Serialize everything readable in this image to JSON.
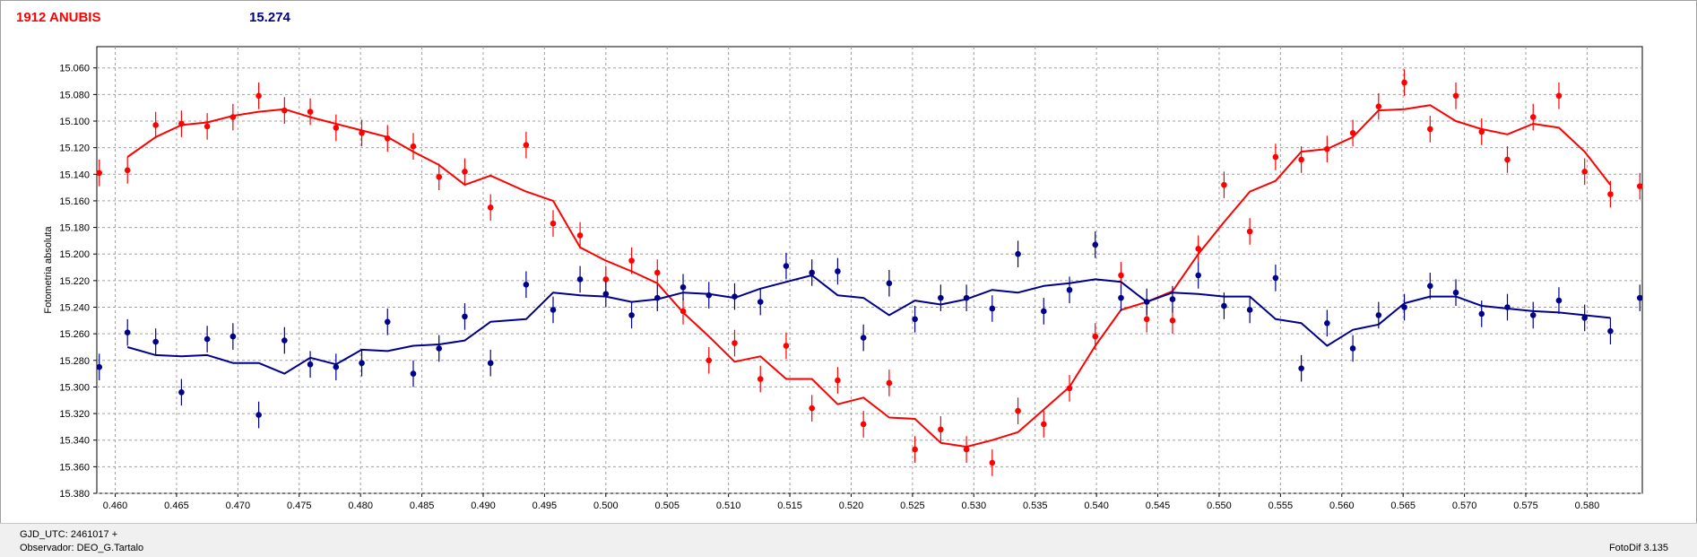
{
  "header": {
    "object_name": "1912 ANUBIS",
    "mean_magnitude": "15.274"
  },
  "footer": {
    "gjd_label": "GJD_UTC: 2461017 +",
    "observer_label": "Observador: DEO_G.Tartalo",
    "software_version": "FotoDif 3.135"
  },
  "colors": {
    "target": "#ff0000",
    "comparison": "#00008b",
    "grid": "#a0a0a0"
  },
  "chart_data": {
    "type": "scatter",
    "title": "",
    "xlabel": "",
    "ylabel": "Fotometria absoluta",
    "xlim": [
      0.4585,
      0.5845
    ],
    "ylim": [
      15.38,
      15.044
    ],
    "y_inverted": true,
    "grid": true,
    "x_ticks": [
      "0.460",
      "0.465",
      "0.470",
      "0.475",
      "0.480",
      "0.485",
      "0.490",
      "0.495",
      "0.500",
      "0.505",
      "0.510",
      "0.515",
      "0.520",
      "0.525",
      "0.530",
      "0.535",
      "0.540",
      "0.545",
      "0.550",
      "0.555",
      "0.560",
      "0.565",
      "0.570",
      "0.575",
      "0.580"
    ],
    "y_ticks": [
      "15.060",
      "15.080",
      "15.100",
      "15.120",
      "15.140",
      "15.160",
      "15.180",
      "15.200",
      "15.220",
      "15.240",
      "15.260",
      "15.280",
      "15.300",
      "15.320",
      "15.340",
      "15.360",
      "15.380"
    ],
    "series": [
      {
        "name": "",
        "color": "#ff0000",
        "error": 0.01,
        "points": [
          [
            0.4587,
            15.139
          ],
          [
            0.461,
            15.137
          ],
          [
            0.4633,
            15.103
          ],
          [
            0.4654,
            15.102
          ],
          [
            0.4675,
            15.104
          ],
          [
            0.4696,
            15.097
          ],
          [
            0.4717,
            15.081
          ],
          [
            0.4738,
            15.092
          ],
          [
            0.4759,
            15.093
          ],
          [
            0.478,
            15.105
          ],
          [
            0.4801,
            15.109
          ],
          [
            0.4822,
            15.113
          ],
          [
            0.4843,
            15.119
          ],
          [
            0.4864,
            15.142
          ],
          [
            0.4885,
            15.138
          ],
          [
            0.4906,
            15.165
          ],
          [
            0.4935,
            15.118
          ],
          [
            0.4957,
            15.177
          ],
          [
            0.4979,
            15.186
          ],
          [
            0.5,
            15.219
          ],
          [
            0.5021,
            15.205
          ],
          [
            0.5042,
            15.214
          ],
          [
            0.5063,
            15.243
          ],
          [
            0.5084,
            15.28
          ],
          [
            0.5105,
            15.267
          ],
          [
            0.5126,
            15.294
          ],
          [
            0.5147,
            15.269
          ],
          [
            0.5168,
            15.316
          ],
          [
            0.5189,
            15.295
          ],
          [
            0.521,
            15.328
          ],
          [
            0.5231,
            15.297
          ],
          [
            0.5252,
            15.347
          ],
          [
            0.5273,
            15.332
          ],
          [
            0.5294,
            15.347
          ],
          [
            0.5315,
            15.357
          ],
          [
            0.5336,
            15.318
          ],
          [
            0.5357,
            15.328
          ],
          [
            0.5378,
            15.301
          ],
          [
            0.5399,
            15.262
          ],
          [
            0.542,
            15.216
          ],
          [
            0.5441,
            15.249
          ],
          [
            0.5462,
            15.25
          ],
          [
            0.5483,
            15.196
          ],
          [
            0.5504,
            15.148
          ],
          [
            0.5525,
            15.183
          ],
          [
            0.5546,
            15.127
          ],
          [
            0.5567,
            15.129
          ],
          [
            0.5588,
            15.121
          ],
          [
            0.5609,
            15.109
          ],
          [
            0.563,
            15.089
          ],
          [
            0.5651,
            15.071
          ],
          [
            0.5672,
            15.106
          ],
          [
            0.5693,
            15.081
          ],
          [
            0.5714,
            15.108
          ],
          [
            0.5735,
            15.129
          ],
          [
            0.5756,
            15.097
          ],
          [
            0.5777,
            15.081
          ],
          [
            0.5798,
            15.138
          ],
          [
            0.5819,
            15.155
          ],
          [
            0.5843,
            15.149
          ]
        ],
        "fit": [
          [
            0.461,
            15.127
          ],
          [
            0.4633,
            15.112
          ],
          [
            0.4654,
            15.103
          ],
          [
            0.4675,
            15.101
          ],
          [
            0.4696,
            15.096
          ],
          [
            0.4717,
            15.093
          ],
          [
            0.4738,
            15.091
          ],
          [
            0.4759,
            15.097
          ],
          [
            0.478,
            15.102
          ],
          [
            0.4801,
            15.107
          ],
          [
            0.4822,
            15.112
          ],
          [
            0.4843,
            15.123
          ],
          [
            0.4864,
            15.133
          ],
          [
            0.4885,
            15.148
          ],
          [
            0.4906,
            15.141
          ],
          [
            0.4935,
            15.153
          ],
          [
            0.4957,
            15.16
          ],
          [
            0.4979,
            15.195
          ],
          [
            0.5,
            15.205
          ],
          [
            0.5021,
            15.213
          ],
          [
            0.5042,
            15.222
          ],
          [
            0.5063,
            15.244
          ],
          [
            0.5084,
            15.262
          ],
          [
            0.5105,
            15.281
          ],
          [
            0.5126,
            15.277
          ],
          [
            0.5147,
            15.294
          ],
          [
            0.5168,
            15.294
          ],
          [
            0.5189,
            15.313
          ],
          [
            0.521,
            15.308
          ],
          [
            0.5231,
            15.323
          ],
          [
            0.5252,
            15.324
          ],
          [
            0.5273,
            15.342
          ],
          [
            0.5294,
            15.345
          ],
          [
            0.5315,
            15.34
          ],
          [
            0.5336,
            15.334
          ],
          [
            0.5357,
            15.317
          ],
          [
            0.5378,
            15.3
          ],
          [
            0.5399,
            15.269
          ],
          [
            0.542,
            15.242
          ],
          [
            0.5441,
            15.236
          ],
          [
            0.5462,
            15.228
          ],
          [
            0.5483,
            15.2
          ],
          [
            0.5504,
            15.176
          ],
          [
            0.5525,
            15.153
          ],
          [
            0.5546,
            15.145
          ],
          [
            0.5567,
            15.123
          ],
          [
            0.5588,
            15.121
          ],
          [
            0.5609,
            15.112
          ],
          [
            0.563,
            15.092
          ],
          [
            0.5651,
            15.091
          ],
          [
            0.5672,
            15.088
          ],
          [
            0.5693,
            15.1
          ],
          [
            0.5714,
            15.106
          ],
          [
            0.5735,
            15.11
          ],
          [
            0.5756,
            15.102
          ],
          [
            0.5777,
            15.105
          ],
          [
            0.5798,
            15.123
          ],
          [
            0.5819,
            15.148
          ]
        ]
      },
      {
        "name": "",
        "color": "#00008b",
        "error": 0.01,
        "points": [
          [
            0.4587,
            15.285
          ],
          [
            0.461,
            15.259
          ],
          [
            0.4633,
            15.266
          ],
          [
            0.4654,
            15.304
          ],
          [
            0.4675,
            15.264
          ],
          [
            0.4696,
            15.262
          ],
          [
            0.4717,
            15.321
          ],
          [
            0.4738,
            15.265
          ],
          [
            0.4759,
            15.283
          ],
          [
            0.478,
            15.285
          ],
          [
            0.4801,
            15.282
          ],
          [
            0.4822,
            15.251
          ],
          [
            0.4843,
            15.29
          ],
          [
            0.4864,
            15.271
          ],
          [
            0.4885,
            15.247
          ],
          [
            0.4906,
            15.282
          ],
          [
            0.4935,
            15.223
          ],
          [
            0.4957,
            15.242
          ],
          [
            0.4979,
            15.219
          ],
          [
            0.5,
            15.23
          ],
          [
            0.5021,
            15.246
          ],
          [
            0.5042,
            15.233
          ],
          [
            0.5063,
            15.225
          ],
          [
            0.5084,
            15.231
          ],
          [
            0.5105,
            15.232
          ],
          [
            0.5126,
            15.236
          ],
          [
            0.5147,
            15.209
          ],
          [
            0.5168,
            15.214
          ],
          [
            0.5189,
            15.213
          ],
          [
            0.521,
            15.263
          ],
          [
            0.5231,
            15.222
          ],
          [
            0.5252,
            15.249
          ],
          [
            0.5273,
            15.233
          ],
          [
            0.5294,
            15.233
          ],
          [
            0.5315,
            15.241
          ],
          [
            0.5336,
            15.2
          ],
          [
            0.5357,
            15.243
          ],
          [
            0.5378,
            15.227
          ],
          [
            0.5399,
            15.193
          ],
          [
            0.542,
            15.233
          ],
          [
            0.5441,
            15.236
          ],
          [
            0.5462,
            15.234
          ],
          [
            0.5483,
            15.216
          ],
          [
            0.5504,
            15.239
          ],
          [
            0.5525,
            15.242
          ],
          [
            0.5546,
            15.218
          ],
          [
            0.5567,
            15.286
          ],
          [
            0.5588,
            15.252
          ],
          [
            0.5609,
            15.271
          ],
          [
            0.563,
            15.246
          ],
          [
            0.5651,
            15.24
          ],
          [
            0.5672,
            15.224
          ],
          [
            0.5693,
            15.229
          ],
          [
            0.5714,
            15.245
          ],
          [
            0.5735,
            15.24
          ],
          [
            0.5756,
            15.246
          ],
          [
            0.5777,
            15.235
          ],
          [
            0.5798,
            15.248
          ],
          [
            0.5819,
            15.258
          ],
          [
            0.5843,
            15.233
          ]
        ],
        "fit": [
          [
            0.461,
            15.27
          ],
          [
            0.4633,
            15.276
          ],
          [
            0.4654,
            15.277
          ],
          [
            0.4675,
            15.276
          ],
          [
            0.4696,
            15.282
          ],
          [
            0.4717,
            15.282
          ],
          [
            0.4738,
            15.29
          ],
          [
            0.4759,
            15.278
          ],
          [
            0.478,
            15.283
          ],
          [
            0.4801,
            15.272
          ],
          [
            0.4822,
            15.273
          ],
          [
            0.4843,
            15.269
          ],
          [
            0.4864,
            15.268
          ],
          [
            0.4885,
            15.265
          ],
          [
            0.4906,
            15.251
          ],
          [
            0.4935,
            15.249
          ],
          [
            0.4957,
            15.229
          ],
          [
            0.4979,
            15.231
          ],
          [
            0.5,
            15.232
          ],
          [
            0.5021,
            15.236
          ],
          [
            0.5042,
            15.234
          ],
          [
            0.5063,
            15.229
          ],
          [
            0.5084,
            15.23
          ],
          [
            0.5105,
            15.233
          ],
          [
            0.5126,
            15.226
          ],
          [
            0.5147,
            15.221
          ],
          [
            0.5168,
            15.216
          ],
          [
            0.5189,
            15.231
          ],
          [
            0.521,
            15.233
          ],
          [
            0.5231,
            15.246
          ],
          [
            0.5252,
            15.235
          ],
          [
            0.5273,
            15.238
          ],
          [
            0.5294,
            15.234
          ],
          [
            0.5315,
            15.227
          ],
          [
            0.5336,
            15.229
          ],
          [
            0.5357,
            15.224
          ],
          [
            0.5378,
            15.222
          ],
          [
            0.5399,
            15.219
          ],
          [
            0.542,
            15.221
          ],
          [
            0.5441,
            15.236
          ],
          [
            0.5462,
            15.229
          ],
          [
            0.5483,
            15.23
          ],
          [
            0.5504,
            15.232
          ],
          [
            0.5525,
            15.232
          ],
          [
            0.5546,
            15.249
          ],
          [
            0.5567,
            15.252
          ],
          [
            0.5588,
            15.269
          ],
          [
            0.5609,
            15.257
          ],
          [
            0.563,
            15.253
          ],
          [
            0.5651,
            15.237
          ],
          [
            0.5672,
            15.232
          ],
          [
            0.5693,
            15.232
          ],
          [
            0.5714,
            15.239
          ],
          [
            0.5735,
            15.241
          ],
          [
            0.5756,
            15.243
          ],
          [
            0.5777,
            15.244
          ],
          [
            0.5798,
            15.246
          ],
          [
            0.5819,
            15.248
          ]
        ]
      }
    ]
  }
}
